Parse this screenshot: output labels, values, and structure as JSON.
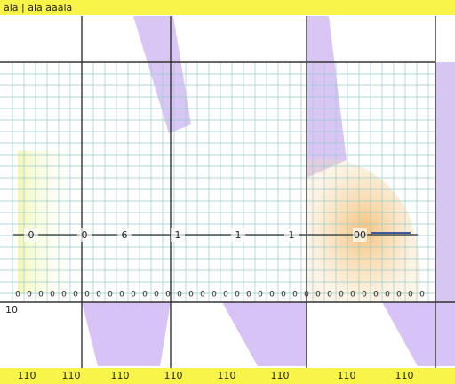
{
  "header": {
    "title": "ala | ala  aaala"
  },
  "side_label": "10",
  "track_labels": [
    "0",
    "0",
    "6",
    "1",
    "1",
    "1",
    "00"
  ],
  "row_labels": [
    "0",
    "0",
    "0",
    "0",
    "0",
    "0",
    "0",
    "0",
    "0",
    "0",
    "0",
    "0",
    "0",
    "0",
    "0",
    "0",
    "0",
    "0",
    "0",
    "0",
    "0",
    "0",
    "0",
    "0",
    "0",
    "0",
    "0",
    "0",
    "0",
    "0",
    "0",
    "0",
    "0",
    "0",
    "0",
    "0"
  ],
  "footer_labels": [
    "110",
    "110",
    "110",
    "110",
    "110",
    "110",
    "110",
    "110"
  ]
}
